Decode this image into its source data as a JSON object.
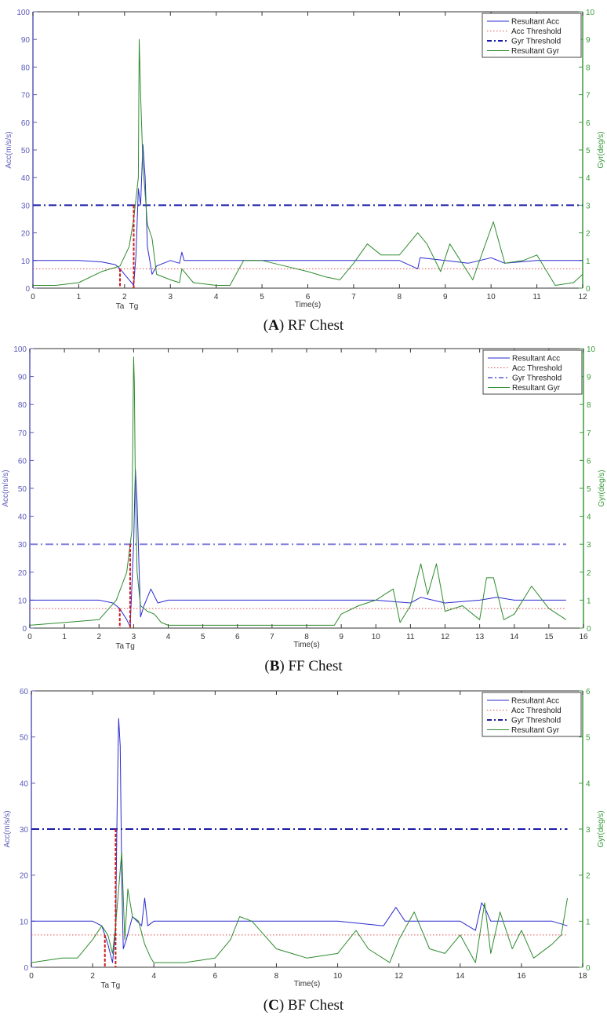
{
  "legend": {
    "items": [
      "Resultant Acc",
      "Acc Threshold",
      "Gyr Threshold",
      "Resultant Gyr"
    ]
  },
  "colors": {
    "acc": "#2a2ad0",
    "acc_threshold": "#e05050",
    "gyr_threshold": "#1a1aa8",
    "gyr": "#2e8b2e",
    "marker": "#d01818",
    "left_axis": "#5a5ab8",
    "right_axis": "#3a9a3a"
  },
  "panels": [
    {
      "caption_letter": "A",
      "caption_text": "RF Chest",
      "xlabel": "Time(s)",
      "ylabel_left": "Acc(m/s/s)",
      "ylabel_right": "Gyr(deg/s)",
      "markers": [
        "Ta",
        "Tg"
      ]
    },
    {
      "caption_letter": "B",
      "caption_text": "FF Chest",
      "xlabel": "Time(s)",
      "ylabel_left": "Acc(m/s/s)",
      "ylabel_right": "Gyr(deg/s)",
      "markers": [
        "Ta",
        "Tg"
      ]
    },
    {
      "caption_letter": "C",
      "caption_text": "BF Chest",
      "xlabel": "Time(s)",
      "ylabel_left": "Acc(m/s/s)",
      "ylabel_right": "Gyr(deg/s)",
      "markers": [
        "Ta",
        "Tg"
      ]
    }
  ],
  "chart_data": [
    {
      "type": "line",
      "title": "(A) RF Chest",
      "xlabel": "Time(s)",
      "ylabel": "Acc(m/s/s)",
      "ylabel_right": "Gyr(deg/s)",
      "xlim": [
        0,
        12
      ],
      "ylim": [
        0,
        100
      ],
      "ylim_right": [
        0,
        10
      ],
      "xticks": [
        0,
        1,
        2,
        3,
        4,
        5,
        6,
        7,
        8,
        9,
        10,
        11,
        12
      ],
      "yticks": [
        0,
        10,
        20,
        30,
        40,
        50,
        60,
        70,
        80,
        90,
        100
      ],
      "yticks_right": [
        0,
        1,
        2,
        3,
        4,
        5,
        6,
        7,
        8,
        9,
        10
      ],
      "legend": [
        "Resultant Acc",
        "Acc Threshold",
        "Gyr Threshold",
        "Resultant Gyr"
      ],
      "legend_position": "upper right",
      "thresholds": {
        "acc_threshold": 7,
        "gyr_threshold": 3
      },
      "markers": {
        "Ta": 1.9,
        "Tg": 2.2
      },
      "series": [
        {
          "name": "Resultant Acc",
          "axis": "left",
          "x": [
            0,
            0.5,
            1,
            1.5,
            1.8,
            1.9,
            2.0,
            2.1,
            2.2,
            2.25,
            2.3,
            2.35,
            2.4,
            2.45,
            2.5,
            2.6,
            2.7,
            3,
            3.2,
            3.25,
            3.3,
            3.5,
            4,
            5,
            6,
            7,
            8,
            8.4,
            8.45,
            9,
            9.5,
            10,
            10.3,
            11,
            12
          ],
          "values": [
            10,
            10,
            10,
            9.5,
            8.5,
            7,
            5,
            3,
            1,
            12,
            36,
            30,
            52,
            40,
            15,
            5,
            8,
            10,
            9,
            13,
            10,
            10,
            10,
            10,
            10,
            10,
            10,
            7,
            11,
            10,
            9,
            11,
            9,
            10,
            10
          ]
        },
        {
          "name": "Acc Threshold",
          "axis": "left",
          "x": [
            0,
            12
          ],
          "values": [
            7,
            7
          ]
        },
        {
          "name": "Gyr Threshold",
          "axis": "right",
          "x": [
            0,
            12
          ],
          "values": [
            3,
            3
          ]
        },
        {
          "name": "Resultant Gyr",
          "axis": "right",
          "x": [
            0,
            0.5,
            1,
            1.5,
            1.9,
            2.1,
            2.2,
            2.3,
            2.32,
            2.35,
            2.4,
            2.5,
            2.6,
            2.7,
            3,
            3.2,
            3.25,
            3.5,
            4,
            4.3,
            4.6,
            5,
            5.5,
            6,
            6.4,
            6.7,
            7,
            7.3,
            7.6,
            8,
            8.4,
            8.6,
            8.9,
            9.1,
            9.6,
            10.05,
            10.3,
            10.7,
            11,
            11.4,
            11.8,
            12
          ],
          "values": [
            0.1,
            0.1,
            0.2,
            0.6,
            0.8,
            1.5,
            2.5,
            4,
            9,
            7,
            4.5,
            2.3,
            1.8,
            0.5,
            0.3,
            0.2,
            0.7,
            0.2,
            0.1,
            0.1,
            1.0,
            1.0,
            0.8,
            0.6,
            0.4,
            0.3,
            0.9,
            1.6,
            1.2,
            1.2,
            2.0,
            1.6,
            0.6,
            1.6,
            0.3,
            2.4,
            0.9,
            1.0,
            1.2,
            0.1,
            0.2,
            0.5
          ]
        }
      ]
    },
    {
      "type": "line",
      "title": "(B) FF Chest",
      "xlabel": "Time(s)",
      "ylabel": "Acc(m/s/s)",
      "ylabel_right": "Gyr(deg/s)",
      "xlim": [
        0,
        16
      ],
      "ylim": [
        0,
        100
      ],
      "ylim_right": [
        0,
        10
      ],
      "xticks": [
        0,
        1,
        2,
        3,
        4,
        5,
        6,
        7,
        8,
        9,
        10,
        11,
        12,
        13,
        14,
        15,
        16
      ],
      "yticks": [
        0,
        10,
        20,
        30,
        40,
        50,
        60,
        70,
        80,
        90,
        100
      ],
      "yticks_right": [
        0,
        1,
        2,
        3,
        4,
        5,
        6,
        7,
        8,
        9,
        10
      ],
      "legend": [
        "Resultant Acc",
        "Acc Threshold",
        "Gyr Threshold",
        "Resultant Gyr"
      ],
      "legend_position": "upper right",
      "thresholds": {
        "acc_threshold": 7,
        "gyr_threshold": 3
      },
      "markers": {
        "Ta": 2.6,
        "Tg": 2.9
      },
      "series": [
        {
          "name": "Resultant Acc",
          "axis": "left",
          "x": [
            0,
            1,
            2,
            2.4,
            2.6,
            2.8,
            2.9,
            3.0,
            3.05,
            3.1,
            3.2,
            3.3,
            3.5,
            3.7,
            4,
            6,
            8,
            9.5,
            10,
            11,
            11.3,
            12,
            13,
            13.5,
            14,
            15,
            15.5
          ],
          "values": [
            10,
            10,
            10,
            9,
            7,
            3,
            0.5,
            30,
            57,
            45,
            4,
            8,
            14,
            9,
            10,
            10,
            10,
            10,
            10,
            9,
            11,
            9,
            10,
            11,
            10,
            10,
            10
          ]
        },
        {
          "name": "Acc Threshold",
          "axis": "left",
          "x": [
            0,
            15.5
          ],
          "values": [
            7,
            7
          ]
        },
        {
          "name": "Gyr Threshold",
          "axis": "right",
          "x": [
            0,
            15.5
          ],
          "values": [
            3,
            3
          ]
        },
        {
          "name": "Resultant Gyr",
          "axis": "right",
          "x": [
            0,
            1,
            2,
            2.5,
            2.8,
            2.95,
            3.0,
            3.02,
            3.05,
            3.1,
            3.2,
            3.4,
            3.6,
            3.8,
            4,
            6,
            8,
            8.8,
            9,
            9.5,
            10,
            10.5,
            10.7,
            11,
            11.3,
            11.5,
            11.75,
            12,
            12.5,
            13,
            13.2,
            13.4,
            13.7,
            14,
            14.5,
            15,
            15.5
          ],
          "values": [
            0.1,
            0.2,
            0.3,
            1.0,
            2.0,
            3.5,
            9.7,
            8.8,
            5,
            2,
            0.8,
            0.6,
            0.5,
            0.2,
            0.1,
            0.1,
            0.1,
            0.1,
            0.5,
            0.8,
            1.0,
            1.4,
            0.2,
            0.8,
            2.3,
            1.2,
            2.3,
            0.6,
            0.8,
            0.3,
            1.8,
            1.8,
            0.3,
            0.5,
            1.5,
            0.7,
            0.3
          ]
        }
      ]
    },
    {
      "type": "line",
      "title": "(C) BF Chest",
      "xlabel": "Time(s)",
      "ylabel": "Acc(m/s/s)",
      "ylabel_right": "Gyr(deg/s)",
      "xlim": [
        0,
        18
      ],
      "ylim": [
        0,
        60
      ],
      "ylim_right": [
        0,
        6
      ],
      "xticks": [
        0,
        2,
        4,
        6,
        8,
        10,
        12,
        14,
        16,
        18
      ],
      "yticks": [
        0,
        10,
        20,
        30,
        40,
        50,
        60
      ],
      "yticks_right": [
        0,
        1,
        2,
        3,
        4,
        5,
        6
      ],
      "legend": [
        "Resultant Acc",
        "Acc Threshold",
        "Gyr Threshold",
        "Resultant Gyr"
      ],
      "legend_position": "upper right",
      "thresholds": {
        "acc_threshold": 7,
        "gyr_threshold": 3
      },
      "markers": {
        "Ta": 2.4,
        "Tg": 2.75
      },
      "series": [
        {
          "name": "Resultant Acc",
          "axis": "left",
          "x": [
            0,
            1,
            2,
            2.3,
            2.5,
            2.65,
            2.75,
            2.8,
            2.85,
            2.9,
            2.95,
            3.0,
            3.1,
            3.3,
            3.6,
            3.7,
            3.8,
            4,
            6,
            7,
            8,
            10,
            11.5,
            11.9,
            12.2,
            13,
            14,
            14.5,
            14.7,
            14.8,
            15,
            16,
            17,
            17.5
          ],
          "values": [
            10,
            10,
            10,
            9,
            5,
            1,
            8,
            35,
            54,
            48,
            20,
            4,
            6,
            11,
            9,
            15,
            9,
            10,
            10,
            10,
            10,
            10,
            9,
            13,
            10,
            10,
            10,
            8,
            14,
            13,
            10,
            10,
            10,
            9
          ]
        },
        {
          "name": "Acc Threshold",
          "axis": "left",
          "x": [
            0,
            17.5
          ],
          "values": [
            7,
            7
          ]
        },
        {
          "name": "Gyr Threshold",
          "axis": "right",
          "x": [
            0,
            17.5
          ],
          "values": [
            3,
            3
          ]
        },
        {
          "name": "Resultant Gyr",
          "axis": "right",
          "x": [
            0,
            1,
            1.5,
            2,
            2.3,
            2.5,
            2.65,
            2.75,
            2.85,
            2.95,
            3.05,
            3.15,
            3.3,
            3.5,
            3.7,
            3.9,
            4,
            5,
            6,
            6.5,
            6.8,
            7.2,
            7.6,
            8,
            9,
            10,
            10.6,
            11,
            11.7,
            12,
            12.5,
            13,
            13.5,
            14,
            14.5,
            14.8,
            15,
            15.3,
            15.7,
            16,
            16.4,
            17,
            17.3,
            17.5
          ],
          "values": [
            0.1,
            0.2,
            0.2,
            0.6,
            0.9,
            0.7,
            0.3,
            0.9,
            1.7,
            2.5,
            0.6,
            1.7,
            1.1,
            1.0,
            0.5,
            0.2,
            0.1,
            0.1,
            0.2,
            0.6,
            1.1,
            1.0,
            0.7,
            0.4,
            0.2,
            0.3,
            0.8,
            0.4,
            0.1,
            0.6,
            1.2,
            0.4,
            0.3,
            0.7,
            0.1,
            1.4,
            0.3,
            1.2,
            0.4,
            0.8,
            0.2,
            0.5,
            0.7,
            1.5
          ]
        }
      ]
    }
  ]
}
